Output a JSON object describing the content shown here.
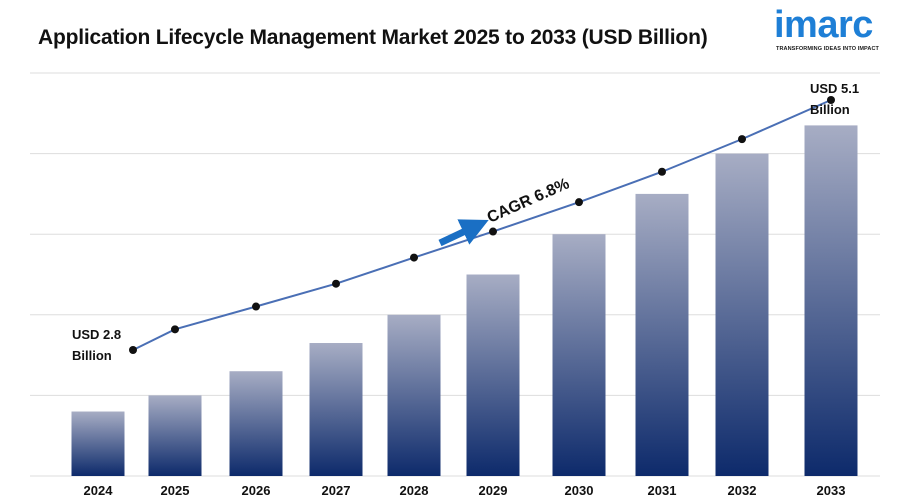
{
  "header": {
    "title": "Application Lifecycle Management Market 2025 to 2033 (USD Billion)"
  },
  "logo": {
    "word": "imarc",
    "tagline": "TRANSFORMING IDEAS INTO IMPACT",
    "color": "#1e7fd6"
  },
  "colors": {
    "bar_top": "#a7adc4",
    "bar_bottom": "#0d2a6b",
    "line": "#4a6fb5",
    "marker": "#111111",
    "gridline": "#dddddd",
    "arrow": "#1a6fc4"
  },
  "chart_data": {
    "type": "bar",
    "title": "Application Lifecycle Management Market 2025 to 2033 (USD Billion)",
    "categories": [
      "2024",
      "2025",
      "2026",
      "2027",
      "2028",
      "2029",
      "2030",
      "2031",
      "2032",
      "2033"
    ],
    "values": [
      1.6,
      2.0,
      2.6,
      3.3,
      4.0,
      5.0,
      6.0,
      7.0,
      8.0,
      8.7
    ],
    "trend_line": [
      2.8,
      2.99,
      3.2,
      3.41,
      3.65,
      3.89,
      4.16,
      4.44,
      4.74,
      5.1
    ],
    "ylim": [
      0,
      10
    ],
    "grid": true,
    "annotations": {
      "start": [
        "USD 2.8",
        "Billion"
      ],
      "end": [
        "USD 5.1",
        "Billion"
      ],
      "cagr": "CAGR 6.8%"
    }
  }
}
